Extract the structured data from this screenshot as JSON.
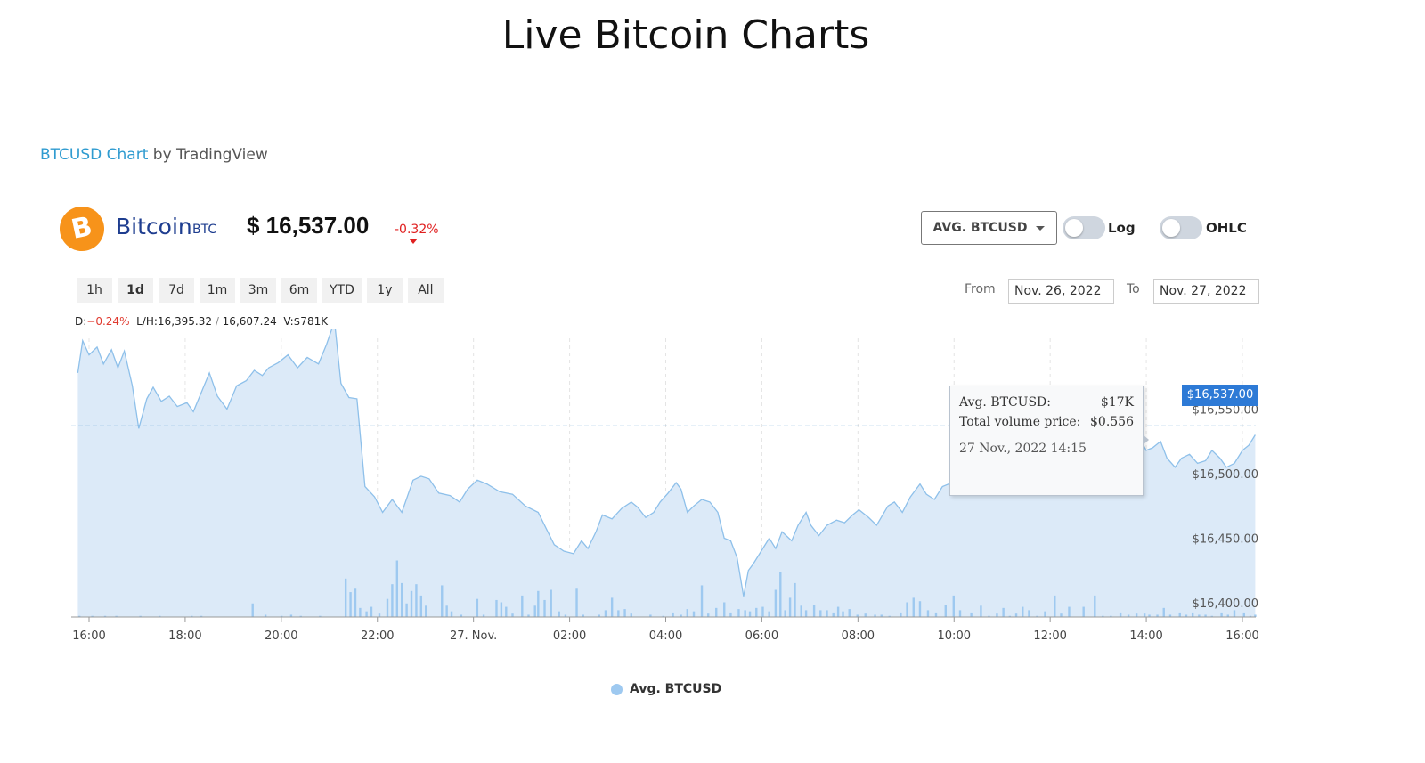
{
  "page": {
    "title": "Live Bitcoin Charts"
  },
  "source": {
    "link_text": "BTCUSD Chart",
    "by_text": " by TradingView"
  },
  "coin": {
    "logo_glyph": "B",
    "name": "Bitcoin",
    "symbol": "BTC",
    "price": "$ 16,537.00",
    "change": "-0.32%"
  },
  "controls": {
    "series_select": "AVG. BTCUSD",
    "log_label": "Log",
    "ohlc_label": "OHLC",
    "log_on": false,
    "ohlc_on": false
  },
  "ranges": [
    {
      "label": "1h",
      "active": false
    },
    {
      "label": "1d",
      "active": true
    },
    {
      "label": "7d",
      "active": false
    },
    {
      "label": "1m",
      "active": false
    },
    {
      "label": "3m",
      "active": false
    },
    {
      "label": "6m",
      "active": false
    },
    {
      "label": "YTD",
      "active": false
    },
    {
      "label": "1y",
      "active": false
    },
    {
      "label": "All",
      "active": false
    }
  ],
  "dates": {
    "from_label": "From",
    "from_value": "Nov. 26, 2022",
    "to_label": "To",
    "to_value": "Nov. 27, 2022"
  },
  "stats": {
    "d_label": "D:",
    "d_value": "−0.24%",
    "lh_label": "L/H:",
    "low": "16,395.32",
    "sep": " / ",
    "high": "16,607.24",
    "v_label": "V:",
    "volume": "$781K"
  },
  "tooltip": {
    "avg_label": "Avg. BTCUSD:",
    "avg_value": "$17K",
    "vol_label": "Total volume price:",
    "vol_value": "$0.556",
    "timestamp": "27 Nov., 2022 14:15"
  },
  "price_tag": "$16,537.00",
  "legend": {
    "label": "Avg. BTCUSD"
  },
  "colors": {
    "accent": "#2f9bd0",
    "line": "#8ec0ea",
    "area": "#dceaf8",
    "volume": "#9ec9f0",
    "negative": "#e02020",
    "price_tag": "#2d7ad6",
    "bitcoin": "#f7931a"
  },
  "chart_data": {
    "type": "area",
    "x_unit": "hours since 16:00 Nov 26",
    "x_tick_labels": [
      "16:00",
      "18:00",
      "20:00",
      "22:00",
      "27. Nov.",
      "02:00",
      "04:00",
      "06:00",
      "08:00",
      "10:00",
      "12:00",
      "14:00",
      "16:00"
    ],
    "y_tick_labels": [
      "$16,400.00",
      "$16,450.00",
      "$16,500.00",
      "$16,550.00"
    ],
    "y_ticks": [
      16400,
      16450,
      16500,
      16550
    ],
    "ylim": [
      16388,
      16600
    ],
    "current_price": 16537,
    "series": [
      {
        "name": "Avg. BTCUSD",
        "points": [
          [
            -0.35,
            16578
          ],
          [
            -0.2,
            16603
          ],
          [
            0,
            16592
          ],
          [
            0.25,
            16598
          ],
          [
            0.45,
            16585
          ],
          [
            0.7,
            16596
          ],
          [
            0.9,
            16582
          ],
          [
            1.1,
            16595
          ],
          [
            1.35,
            16568
          ],
          [
            1.55,
            16535
          ],
          [
            1.8,
            16558
          ],
          [
            2.0,
            16567
          ],
          [
            2.25,
            16556
          ],
          [
            2.5,
            16560
          ],
          [
            2.75,
            16552
          ],
          [
            3.05,
            16555
          ],
          [
            3.25,
            16548
          ],
          [
            3.55,
            16566
          ],
          [
            3.75,
            16578
          ],
          [
            4.0,
            16560
          ],
          [
            4.3,
            16550
          ],
          [
            4.6,
            16568
          ],
          [
            4.9,
            16572
          ],
          [
            5.15,
            16580
          ],
          [
            5.4,
            16576
          ],
          [
            5.6,
            16582
          ],
          [
            5.9,
            16586
          ],
          [
            6.2,
            16592
          ],
          [
            6.5,
            16582
          ],
          [
            6.8,
            16590
          ],
          [
            7.15,
            16585
          ],
          [
            7.4,
            16600
          ],
          [
            7.65,
            16618
          ],
          [
            7.85,
            16570
          ],
          [
            8.1,
            16559
          ],
          [
            8.35,
            16558
          ],
          [
            8.6,
            16490
          ],
          [
            8.9,
            16482
          ],
          [
            9.15,
            16470
          ],
          [
            9.45,
            16480
          ],
          [
            9.75,
            16470
          ],
          [
            10.1,
            16495
          ],
          [
            10.35,
            16498
          ],
          [
            10.6,
            16496
          ],
          [
            10.9,
            16485
          ],
          [
            11.25,
            16483
          ],
          [
            11.55,
            16478
          ],
          [
            11.8,
            16488
          ],
          [
            12.1,
            16495
          ],
          [
            12.4,
            16492
          ],
          [
            12.8,
            16486
          ],
          [
            13.2,
            16484
          ],
          [
            13.6,
            16475
          ],
          [
            14.0,
            16470
          ],
          [
            14.3,
            16455
          ],
          [
            14.5,
            16445
          ],
          [
            14.8,
            16440
          ],
          [
            15.1,
            16438
          ],
          [
            15.35,
            16448
          ],
          [
            15.55,
            16442
          ],
          [
            15.8,
            16455
          ],
          [
            16.0,
            16468
          ],
          [
            16.3,
            16465
          ],
          [
            16.6,
            16473
          ],
          [
            16.9,
            16478
          ],
          [
            17.1,
            16474
          ],
          [
            17.35,
            16466
          ],
          [
            17.6,
            16470
          ],
          [
            17.8,
            16478
          ],
          [
            18.05,
            16485
          ],
          [
            18.3,
            16493
          ],
          [
            18.45,
            16488
          ],
          [
            18.65,
            16470
          ],
          [
            18.85,
            16475
          ],
          [
            19.1,
            16480
          ],
          [
            19.35,
            16478
          ],
          [
            19.6,
            16470
          ],
          [
            19.8,
            16450
          ],
          [
            20.0,
            16448
          ],
          [
            20.2,
            16435
          ],
          [
            20.4,
            16405
          ],
          [
            20.55,
            16425
          ],
          [
            20.7,
            16430
          ],
          [
            20.95,
            16440
          ],
          [
            21.2,
            16450
          ],
          [
            21.4,
            16442
          ],
          [
            21.6,
            16455
          ],
          [
            21.9,
            16448
          ],
          [
            22.1,
            16460
          ],
          [
            22.35,
            16470
          ],
          [
            22.5,
            16460
          ],
          [
            22.75,
            16452
          ],
          [
            23.0,
            16460
          ],
          [
            23.3,
            16464
          ],
          [
            23.55,
            16462
          ],
          [
            23.8,
            16468
          ],
          [
            24.0,
            16472
          ],
          [
            24.3,
            16466
          ],
          [
            24.55,
            16460
          ],
          [
            24.9,
            16475
          ],
          [
            25.1,
            16478
          ],
          [
            25.35,
            16470
          ],
          [
            25.6,
            16482
          ],
          [
            25.9,
            16492
          ],
          [
            26.1,
            16484
          ],
          [
            26.35,
            16480
          ],
          [
            26.6,
            16490
          ],
          [
            26.8,
            16492
          ],
          [
            27.0,
            16498
          ],
          [
            27.25,
            16508
          ],
          [
            27.45,
            16505
          ],
          [
            27.7,
            16512
          ],
          [
            27.9,
            16500
          ],
          [
            28.15,
            16510
          ],
          [
            28.35,
            16520
          ],
          [
            28.6,
            16505
          ],
          [
            28.8,
            16498
          ],
          [
            29.0,
            16502
          ],
          [
            29.3,
            16508
          ],
          [
            29.6,
            16504
          ],
          [
            29.9,
            16510
          ],
          [
            30.1,
            16518
          ],
          [
            30.35,
            16505
          ],
          [
            30.6,
            16515
          ],
          [
            30.85,
            16510
          ],
          [
            31.1,
            16500
          ],
          [
            31.3,
            16512
          ],
          [
            31.5,
            16518
          ],
          [
            31.75,
            16508
          ],
          [
            32.0,
            16516
          ],
          [
            32.2,
            16523
          ],
          [
            32.45,
            16520
          ],
          [
            32.7,
            16530
          ],
          [
            32.95,
            16518
          ],
          [
            33.15,
            16520
          ],
          [
            33.4,
            16525
          ],
          [
            33.6,
            16512
          ],
          [
            33.85,
            16505
          ],
          [
            34.05,
            16512
          ],
          [
            34.3,
            16515
          ],
          [
            34.55,
            16508
          ],
          [
            34.8,
            16510
          ],
          [
            35.0,
            16518
          ],
          [
            35.25,
            16512
          ],
          [
            35.45,
            16505
          ],
          [
            35.7,
            16508
          ],
          [
            35.95,
            16518
          ],
          [
            36.15,
            16522
          ],
          [
            36.35,
            16530
          ]
        ]
      }
    ],
    "volume_scale_note": "relative volume bars",
    "volume": [
      [
        -0.3,
        1
      ],
      [
        0.1,
        1
      ],
      [
        0.5,
        1
      ],
      [
        0.85,
        1
      ],
      [
        1.6,
        1
      ],
      [
        2.2,
        1
      ],
      [
        3.2,
        1
      ],
      [
        3.5,
        1
      ],
      [
        5.1,
        12
      ],
      [
        5.5,
        2
      ],
      [
        6.0,
        1
      ],
      [
        6.3,
        2
      ],
      [
        6.6,
        1
      ],
      [
        7.2,
        1
      ],
      [
        8.0,
        34
      ],
      [
        8.15,
        22
      ],
      [
        8.3,
        25
      ],
      [
        8.45,
        8
      ],
      [
        8.65,
        5
      ],
      [
        8.8,
        9
      ],
      [
        9.05,
        3
      ],
      [
        9.3,
        16
      ],
      [
        9.45,
        29
      ],
      [
        9.6,
        50
      ],
      [
        9.75,
        30
      ],
      [
        9.9,
        12
      ],
      [
        10.05,
        23
      ],
      [
        10.2,
        29
      ],
      [
        10.35,
        19
      ],
      [
        10.5,
        10
      ],
      [
        11.0,
        28
      ],
      [
        11.15,
        10
      ],
      [
        11.3,
        5
      ],
      [
        11.6,
        2
      ],
      [
        12.1,
        16
      ],
      [
        12.3,
        2
      ],
      [
        12.7,
        15
      ],
      [
        12.85,
        13
      ],
      [
        13.0,
        9
      ],
      [
        13.2,
        3
      ],
      [
        13.5,
        19
      ],
      [
        13.7,
        2
      ],
      [
        13.9,
        10
      ],
      [
        14.0,
        23
      ],
      [
        14.2,
        15
      ],
      [
        14.4,
        24
      ],
      [
        14.65,
        5
      ],
      [
        14.85,
        2
      ],
      [
        15.2,
        25
      ],
      [
        15.4,
        2
      ],
      [
        15.9,
        2
      ],
      [
        16.1,
        6
      ],
      [
        16.3,
        17
      ],
      [
        16.5,
        6
      ],
      [
        16.7,
        7
      ],
      [
        16.9,
        3
      ],
      [
        17.5,
        2
      ],
      [
        17.9,
        1
      ],
      [
        18.2,
        4
      ],
      [
        18.45,
        2
      ],
      [
        18.65,
        7
      ],
      [
        18.85,
        5
      ],
      [
        19.1,
        28
      ],
      [
        19.3,
        3
      ],
      [
        19.55,
        8
      ],
      [
        19.8,
        13
      ],
      [
        20.0,
        4
      ],
      [
        20.25,
        7
      ],
      [
        20.45,
        6
      ],
      [
        20.6,
        5
      ],
      [
        20.8,
        8
      ],
      [
        21.0,
        9
      ],
      [
        21.2,
        5
      ],
      [
        21.4,
        24
      ],
      [
        21.55,
        40
      ],
      [
        21.7,
        6
      ],
      [
        21.85,
        17
      ],
      [
        22.0,
        30
      ],
      [
        22.2,
        10
      ],
      [
        22.35,
        6
      ],
      [
        22.6,
        11
      ],
      [
        22.8,
        6
      ],
      [
        23.0,
        6
      ],
      [
        23.2,
        4
      ],
      [
        23.35,
        9
      ],
      [
        23.5,
        5
      ],
      [
        23.7,
        7
      ],
      [
        23.95,
        2
      ],
      [
        24.2,
        3
      ],
      [
        24.5,
        2
      ],
      [
        24.7,
        2
      ],
      [
        24.95,
        1
      ],
      [
        25.3,
        4
      ],
      [
        25.5,
        13
      ],
      [
        25.7,
        17
      ],
      [
        25.9,
        14
      ],
      [
        26.15,
        6
      ],
      [
        26.4,
        4
      ],
      [
        26.7,
        11
      ],
      [
        26.95,
        19
      ],
      [
        27.15,
        6
      ],
      [
        27.5,
        4
      ],
      [
        27.8,
        10
      ],
      [
        28.05,
        1
      ],
      [
        28.3,
        3
      ],
      [
        28.5,
        8
      ],
      [
        28.7,
        1
      ],
      [
        28.9,
        3
      ],
      [
        29.1,
        9
      ],
      [
        29.3,
        6
      ],
      [
        29.55,
        1
      ],
      [
        29.8,
        5
      ],
      [
        30.1,
        19
      ],
      [
        30.3,
        3
      ],
      [
        30.55,
        9
      ],
      [
        31.0,
        9
      ],
      [
        31.35,
        19
      ],
      [
        31.6,
        1
      ],
      [
        31.85,
        1
      ],
      [
        32.15,
        4
      ],
      [
        32.4,
        2
      ],
      [
        32.65,
        3
      ],
      [
        32.9,
        3
      ],
      [
        33.05,
        2
      ],
      [
        33.3,
        2
      ],
      [
        33.5,
        8
      ],
      [
        33.7,
        2
      ],
      [
        34.0,
        4
      ],
      [
        34.2,
        2
      ],
      [
        34.4,
        4
      ],
      [
        34.6,
        2
      ],
      [
        34.8,
        2
      ],
      [
        35.0,
        1
      ],
      [
        35.3,
        4
      ],
      [
        35.5,
        2
      ],
      [
        35.7,
        6
      ],
      [
        36.0,
        4
      ],
      [
        36.2,
        1
      ],
      [
        36.35,
        2
      ]
    ]
  }
}
